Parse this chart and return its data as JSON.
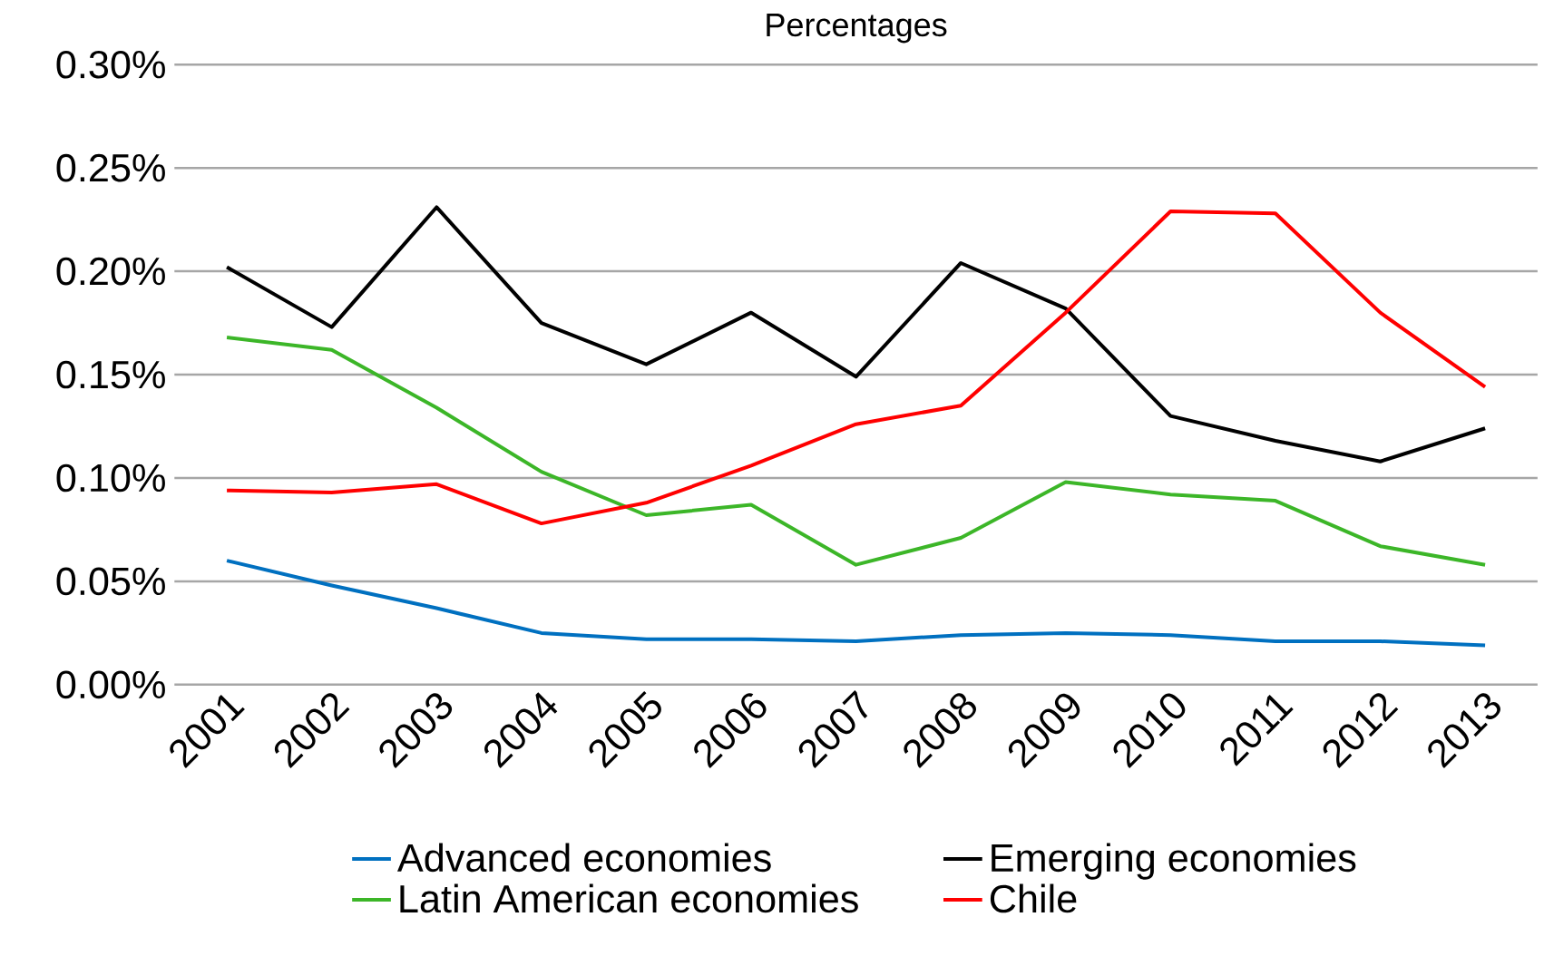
{
  "chart_data": {
    "type": "line",
    "title": "Percentages",
    "categories": [
      "2001",
      "2002",
      "2003",
      "2004",
      "2005",
      "2006",
      "2007",
      "2008",
      "2009",
      "2010",
      "2011",
      "2012",
      "2013"
    ],
    "series": [
      {
        "name": "Advanced economies",
        "color": "#0070c0",
        "values": [
          0.06,
          0.048,
          0.037,
          0.025,
          0.022,
          0.022,
          0.021,
          0.024,
          0.025,
          0.024,
          0.021,
          0.021,
          0.019
        ]
      },
      {
        "name": "Emerging economies",
        "color": "#000000",
        "values": [
          0.202,
          0.173,
          0.231,
          0.175,
          0.155,
          0.18,
          0.149,
          0.204,
          0.182,
          0.13,
          0.118,
          0.108,
          0.124
        ]
      },
      {
        "name": "Latin American economies",
        "color": "#3cb628",
        "values": [
          0.168,
          0.162,
          0.134,
          0.103,
          0.082,
          0.087,
          0.058,
          0.071,
          0.098,
          0.092,
          0.089,
          0.067,
          0.058
        ]
      },
      {
        "name": "Chile",
        "color": "#ff0000",
        "values": [
          0.094,
          0.093,
          0.097,
          0.078,
          0.088,
          0.106,
          0.126,
          0.135,
          0.18,
          0.229,
          0.228,
          0.18,
          0.144
        ]
      }
    ],
    "ylim": [
      0,
      0.3
    ],
    "yticks": [
      {
        "value": 0,
        "label": "0.00%"
      },
      {
        "value": 0.05,
        "label": "0.05%"
      },
      {
        "value": 0.1,
        "label": "0.10%"
      },
      {
        "value": 0.15,
        "label": "0.15%"
      },
      {
        "value": 0.2,
        "label": "0.20%"
      },
      {
        "value": 0.25,
        "label": "0.25%"
      },
      {
        "value": 0.3,
        "label": "0.30%"
      }
    ],
    "grid": "y",
    "legend": "bottom",
    "marker": "none",
    "line_style": "solid"
  }
}
